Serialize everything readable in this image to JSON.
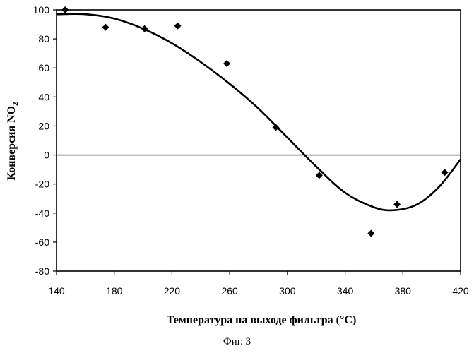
{
  "chart_data": {
    "type": "scatter",
    "title": "",
    "xlabel": "Температура на выходе фильтра (°C)",
    "ylabel_main": "Конверсия NO",
    "ylabel_sub": "2",
    "xlim": [
      140,
      420
    ],
    "ylim": [
      -80,
      100
    ],
    "xticks": [
      "140",
      "180",
      "220",
      "260",
      "300",
      "340",
      "380",
      "420"
    ],
    "yticks": [
      "100",
      "80",
      "60",
      "40",
      "20",
      "0",
      "-20",
      "-40",
      "-60",
      "-80"
    ],
    "grid": false,
    "zero_line": true,
    "series": [
      {
        "type": "scatter",
        "marker": "diamond",
        "points": [
          {
            "x": 146,
            "y": 100
          },
          {
            "x": 174,
            "y": 88
          },
          {
            "x": 201,
            "y": 87
          },
          {
            "x": 224,
            "y": 89
          },
          {
            "x": 258,
            "y": 63
          },
          {
            "x": 292,
            "y": 19
          },
          {
            "x": 322,
            "y": -14
          },
          {
            "x": 358,
            "y": -54
          },
          {
            "x": 376,
            "y": -34
          },
          {
            "x": 409,
            "y": -12
          }
        ]
      },
      {
        "type": "line",
        "smooth": true,
        "points": [
          {
            "x": 140,
            "y": 97
          },
          {
            "x": 160,
            "y": 97
          },
          {
            "x": 180,
            "y": 94
          },
          {
            "x": 200,
            "y": 87
          },
          {
            "x": 220,
            "y": 77
          },
          {
            "x": 240,
            "y": 64
          },
          {
            "x": 260,
            "y": 49
          },
          {
            "x": 280,
            "y": 32
          },
          {
            "x": 300,
            "y": 12
          },
          {
            "x": 320,
            "y": -8
          },
          {
            "x": 340,
            "y": -26
          },
          {
            "x": 360,
            "y": -36
          },
          {
            "x": 374,
            "y": -38
          },
          {
            "x": 390,
            "y": -34
          },
          {
            "x": 405,
            "y": -22
          },
          {
            "x": 420,
            "y": -3
          }
        ]
      }
    ]
  },
  "figure_caption": "Фиг. 3",
  "colors": {
    "ink": "#000000",
    "background": "#ffffff"
  }
}
